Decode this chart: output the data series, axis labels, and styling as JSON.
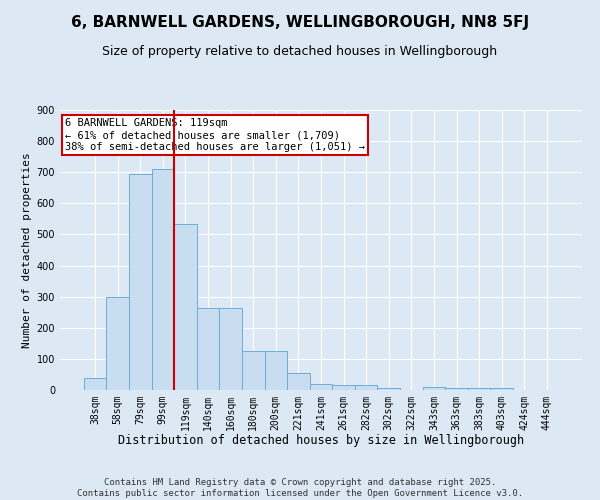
{
  "title": "6, BARNWELL GARDENS, WELLINGBOROUGH, NN8 5FJ",
  "subtitle": "Size of property relative to detached houses in Wellingborough",
  "xlabel": "Distribution of detached houses by size in Wellingborough",
  "ylabel": "Number of detached properties",
  "categories": [
    "38sqm",
    "58sqm",
    "79sqm",
    "99sqm",
    "119sqm",
    "140sqm",
    "160sqm",
    "180sqm",
    "200sqm",
    "221sqm",
    "241sqm",
    "261sqm",
    "282sqm",
    "302sqm",
    "322sqm",
    "343sqm",
    "363sqm",
    "383sqm",
    "403sqm",
    "424sqm",
    "444sqm"
  ],
  "values": [
    40,
    300,
    695,
    710,
    535,
    265,
    265,
    125,
    125,
    55,
    20,
    15,
    15,
    5,
    0,
    10,
    5,
    5,
    5,
    0,
    0
  ],
  "bar_color": "#c9ddf0",
  "bar_edge_color": "#6aaed6",
  "highlight_index": 4,
  "highlight_line_color": "#cc0000",
  "ylim": [
    0,
    900
  ],
  "yticks": [
    0,
    100,
    200,
    300,
    400,
    500,
    600,
    700,
    800,
    900
  ],
  "annotation_text": "6 BARNWELL GARDENS: 119sqm\n← 61% of detached houses are smaller (1,709)\n38% of semi-detached houses are larger (1,051) →",
  "annotation_box_color": "#cc0000",
  "footnote": "Contains HM Land Registry data © Crown copyright and database right 2025.\nContains public sector information licensed under the Open Government Licence v3.0.",
  "background_color": "#dce9f5",
  "plot_bg_color": "#dce9f5",
  "title_fontsize": 11,
  "subtitle_fontsize": 9,
  "xlabel_fontsize": 8.5,
  "ylabel_fontsize": 8,
  "tick_fontsize": 7,
  "annotation_fontsize": 7.5,
  "footnote_fontsize": 6.5
}
